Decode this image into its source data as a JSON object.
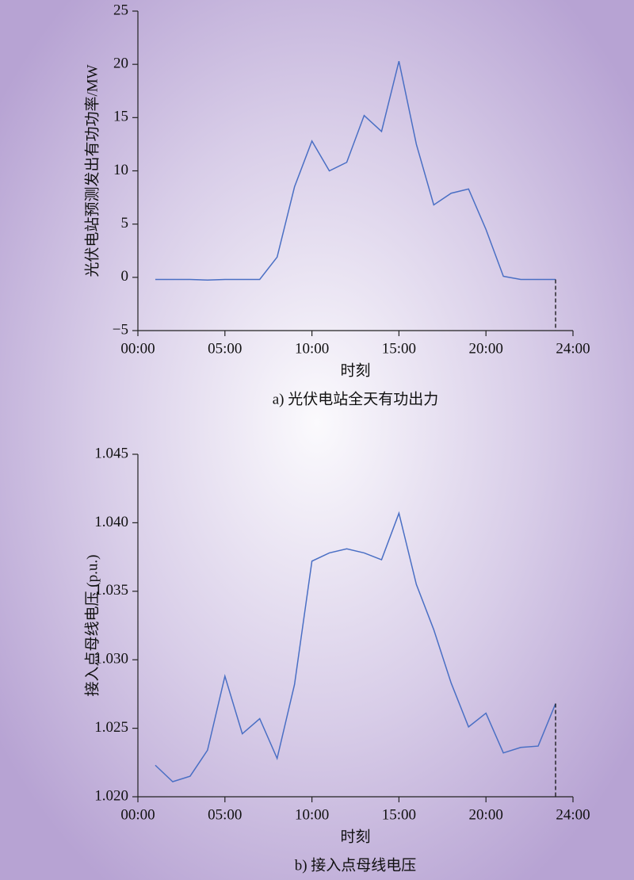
{
  "chart_data": [
    {
      "type": "line",
      "y_label": "光伏电站预测发出有功功率/MW",
      "x_label": "时刻",
      "caption": "a) 光伏电站全天有功出力",
      "x": [
        1,
        2,
        3,
        4,
        5,
        6,
        7,
        8,
        9,
        10,
        11,
        12,
        13,
        14,
        15,
        16,
        17,
        18,
        19,
        20,
        21,
        22,
        23,
        24
      ],
      "series": [
        {
          "color": "#4a6fc4",
          "values": [
            -0.2,
            -0.2,
            -0.2,
            -0.25,
            -0.2,
            -0.2,
            -0.2,
            1.9,
            8.5,
            12.8,
            10.0,
            10.8,
            15.2,
            13.7,
            20.3,
            12.5,
            6.8,
            7.9,
            8.3,
            4.5,
            0.1,
            -0.2,
            -0.2,
            -0.2
          ]
        }
      ],
      "xlim": [
        0,
        25
      ],
      "xticks": [
        {
          "value": 0,
          "label": "00:00"
        },
        {
          "value": 5,
          "label": "05:00"
        },
        {
          "value": 10,
          "label": "10:00"
        },
        {
          "value": 15,
          "label": "15:00"
        },
        {
          "value": 20,
          "label": "20:00"
        },
        {
          "value": 25,
          "label": "24:00"
        }
      ],
      "ylim": [
        -5,
        25
      ],
      "yticks": [
        {
          "value": -5,
          "label": "−5"
        },
        0,
        5,
        10,
        15,
        20,
        25
      ]
    },
    {
      "type": "line",
      "y_label": "接入点母线电压 (p.u.)",
      "x_label": "时刻",
      "caption": "b) 接入点母线电压",
      "x": [
        1,
        2,
        3,
        4,
        5,
        6,
        7,
        8,
        9,
        10,
        11,
        12,
        13,
        14,
        15,
        16,
        17,
        18,
        19,
        20,
        21,
        22,
        23,
        24
      ],
      "series": [
        {
          "color": "#4a6fc4",
          "values": [
            1.0223,
            1.0211,
            1.0215,
            1.0234,
            1.0288,
            1.0246,
            1.0257,
            1.0228,
            1.0282,
            1.0372,
            1.0378,
            1.0381,
            1.0378,
            1.0373,
            1.0407,
            1.0355,
            1.0322,
            1.0283,
            1.0251,
            1.0261,
            1.0232,
            1.0236,
            1.0237,
            1.0268
          ]
        }
      ],
      "xlim": [
        0,
        25
      ],
      "xticks": [
        {
          "value": 0,
          "label": "00:00"
        },
        {
          "value": 5,
          "label": "05:00"
        },
        {
          "value": 10,
          "label": "10:00"
        },
        {
          "value": 15,
          "label": "15:00"
        },
        {
          "value": 20,
          "label": "20:00"
        },
        {
          "value": 25,
          "label": "24:00"
        }
      ],
      "ylim": [
        1.02,
        1.045
      ],
      "yticks": [
        {
          "value": 1.02,
          "label": "1.020"
        },
        1.025,
        {
          "value": 1.03,
          "label": "1.030"
        },
        1.035,
        {
          "value": 1.04,
          "label": "1.040"
        },
        1.045
      ]
    }
  ]
}
